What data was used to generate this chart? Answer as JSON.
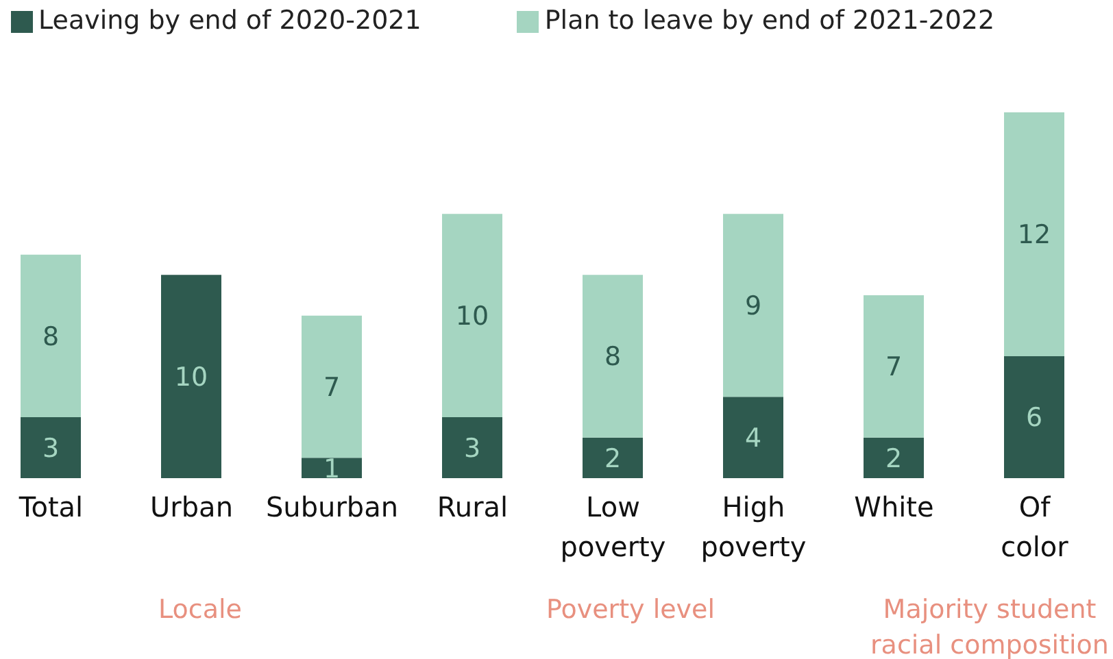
{
  "chart_data": {
    "type": "bar",
    "stacked": true,
    "data_labels": true,
    "legend": "top left",
    "grid": false,
    "categories": [
      "Total",
      "Urban",
      "Suburban",
      "Rural",
      "Low poverty",
      "High poverty",
      "White",
      "Of color"
    ],
    "series": [
      {
        "name": "Leaving by end of 2020-2021",
        "color": "#2e5a4f",
        "values": [
          3,
          10,
          1,
          3,
          2,
          4,
          2,
          6
        ]
      },
      {
        "name": "Plan to leave by end of 2021-2022",
        "color": "#a5d5c1",
        "values": [
          8,
          null,
          7,
          10,
          8,
          9,
          7,
          12
        ]
      }
    ],
    "annotations": [
      "Locale",
      "Poverty level",
      "Majority student racial composition"
    ]
  }
}
